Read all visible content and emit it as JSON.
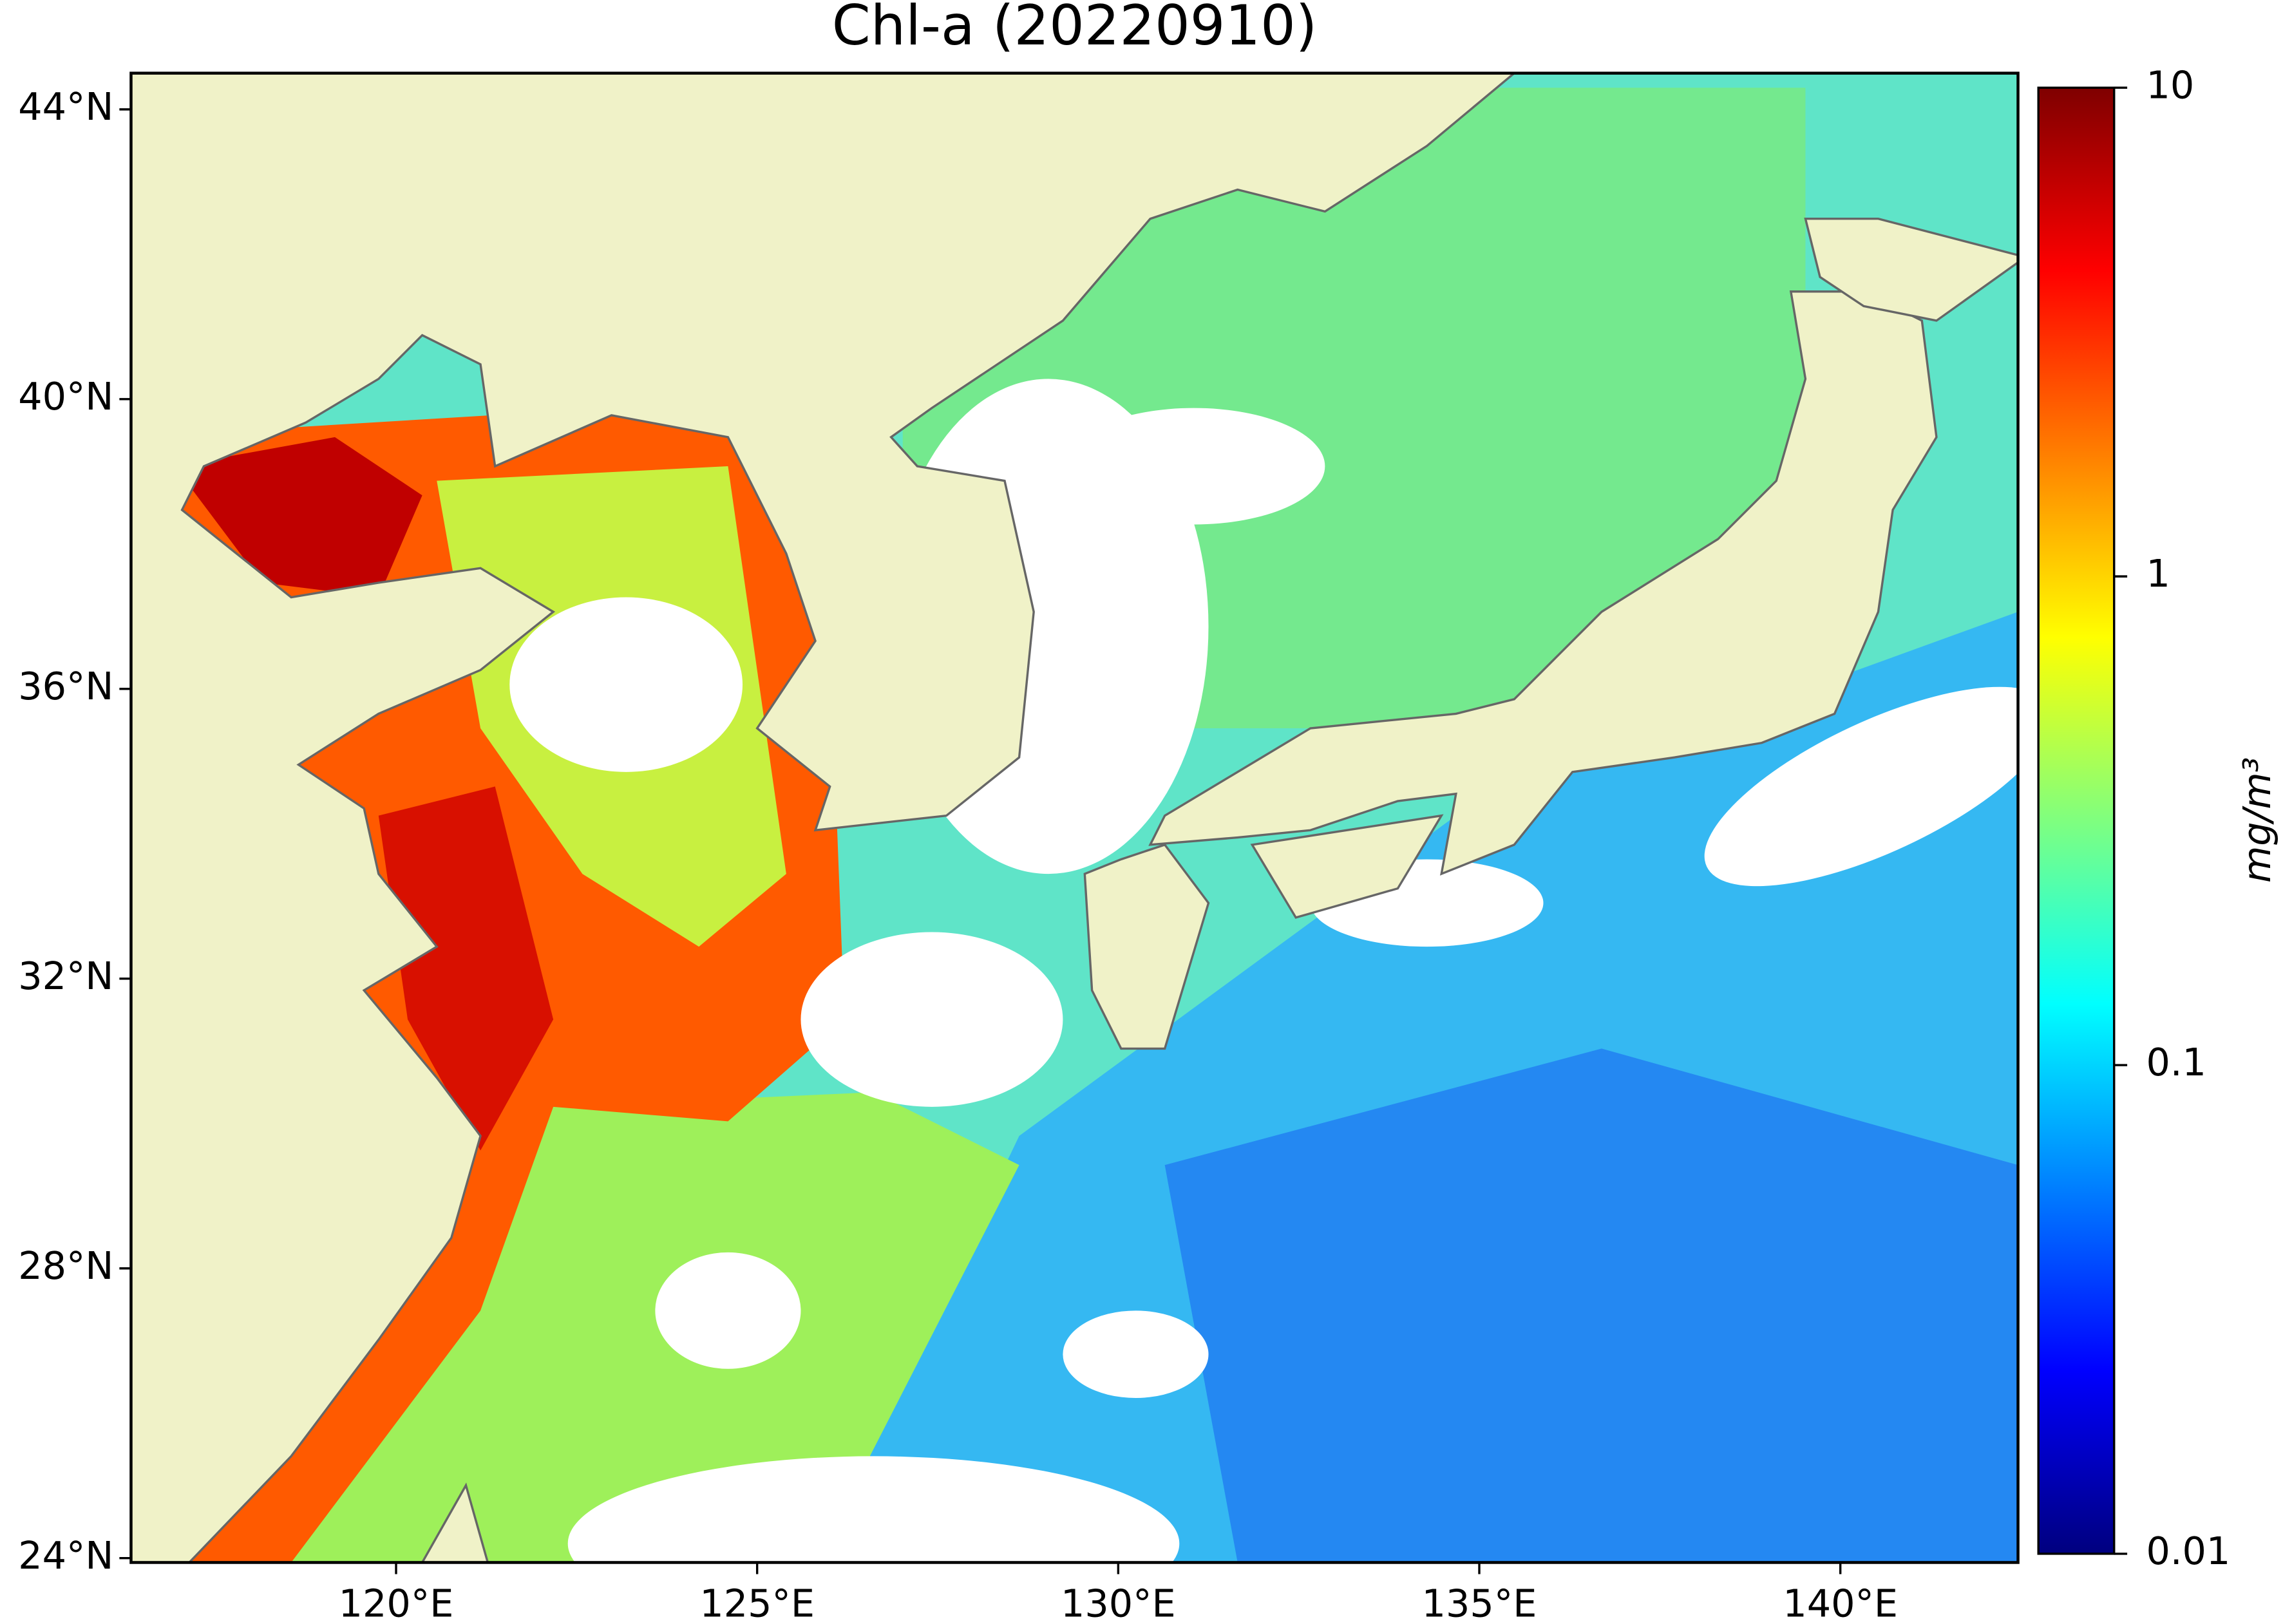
{
  "chart_data": {
    "type": "map",
    "title": "Chl-a (20220910)",
    "xlim": [
      116.33,
      142.46
    ],
    "ylim": [
      23.94,
      44.5
    ],
    "xticks": [
      {
        "value": 120,
        "label": "120°E"
      },
      {
        "value": 125,
        "label": "125°E"
      },
      {
        "value": 130,
        "label": "130°E"
      },
      {
        "value": 135,
        "label": "135°E"
      },
      {
        "value": 140,
        "label": "140°E"
      }
    ],
    "yticks": [
      {
        "value": 24,
        "label": "24°N"
      },
      {
        "value": 28,
        "label": "28°N"
      },
      {
        "value": 32,
        "label": "32°N"
      },
      {
        "value": 36,
        "label": "36°N"
      },
      {
        "value": 40,
        "label": "40°N"
      },
      {
        "value": 44,
        "label": "44°N"
      }
    ],
    "colorbar": {
      "label": "mg/m³",
      "scale": "log",
      "lim": [
        0.01,
        10
      ],
      "ticks": [
        0.01,
        0.1,
        1,
        10
      ],
      "colors": [
        "#00007f",
        "#0000ff",
        "#007fff",
        "#00ffff",
        "#7fff7f",
        "#ffff00",
        "#ff7f00",
        "#ff0000",
        "#7f0000"
      ]
    }
  }
}
